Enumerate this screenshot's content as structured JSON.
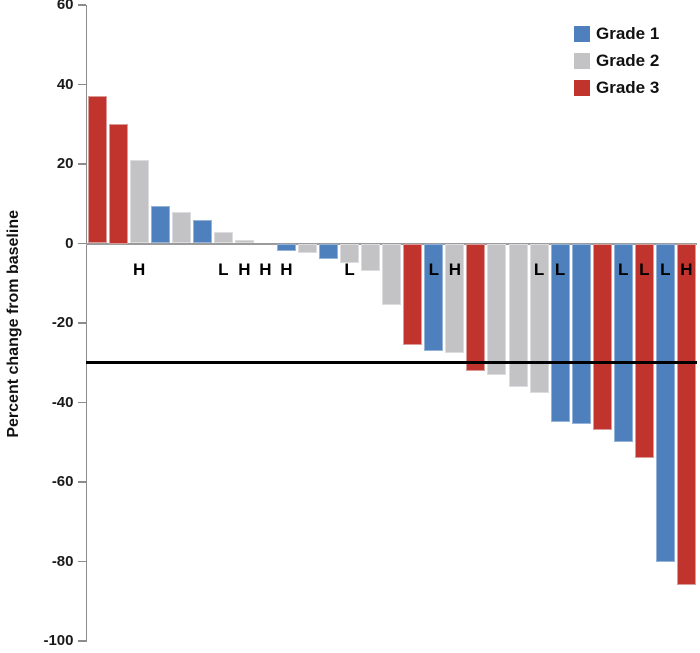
{
  "chart_data": {
    "type": "bar",
    "variant": "waterfall",
    "title": "",
    "xlabel": "",
    "ylabel": "Percent change from baseline",
    "ylim": [
      -100,
      60
    ],
    "yticks": [
      60,
      40,
      20,
      0,
      -20,
      -40,
      -60,
      -80,
      -100
    ],
    "grid": false,
    "legend_position": "top-right",
    "legend": [
      {
        "label": "Grade 1",
        "grade": 1,
        "color": "#4D80BC",
        "border": "#95B3D7"
      },
      {
        "label": "Grade 2",
        "grade": 2,
        "color": "#C3C3C5",
        "border": "#DCDCDE"
      },
      {
        "label": "Grade 3",
        "grade": 3,
        "color": "#C1342E",
        "border": "#D99A98"
      }
    ],
    "reference_line": {
      "value": -30,
      "color": "#000000"
    },
    "axis_color": "#8C8C8C",
    "marker_legend": [
      "H",
      "L"
    ],
    "bars": [
      {
        "value": 37,
        "grade": 3,
        "marker": ""
      },
      {
        "value": 30,
        "grade": 3,
        "marker": ""
      },
      {
        "value": 21,
        "grade": 2,
        "marker": "H"
      },
      {
        "value": 9.5,
        "grade": 1,
        "marker": ""
      },
      {
        "value": 8,
        "grade": 2,
        "marker": ""
      },
      {
        "value": 6,
        "grade": 1,
        "marker": ""
      },
      {
        "value": 3,
        "grade": 2,
        "marker": "L"
      },
      {
        "value": 1,
        "grade": 2,
        "marker": "H"
      },
      {
        "value": 0,
        "grade": 2,
        "marker": "H"
      },
      {
        "value": -2,
        "grade": 1,
        "marker": "H"
      },
      {
        "value": -2.5,
        "grade": 2,
        "marker": ""
      },
      {
        "value": -4,
        "grade": 1,
        "marker": ""
      },
      {
        "value": -5,
        "grade": 2,
        "marker": "L"
      },
      {
        "value": -7,
        "grade": 2,
        "marker": ""
      },
      {
        "value": -15.5,
        "grade": 2,
        "marker": ""
      },
      {
        "value": -25.5,
        "grade": 3,
        "marker": ""
      },
      {
        "value": -27,
        "grade": 1,
        "marker": "L"
      },
      {
        "value": -27.5,
        "grade": 2,
        "marker": "H"
      },
      {
        "value": -32,
        "grade": 3,
        "marker": ""
      },
      {
        "value": -33,
        "grade": 2,
        "marker": ""
      },
      {
        "value": -36,
        "grade": 2,
        "marker": ""
      },
      {
        "value": -37.5,
        "grade": 2,
        "marker": "L"
      },
      {
        "value": -45,
        "grade": 1,
        "marker": "L"
      },
      {
        "value": -45.5,
        "grade": 1,
        "marker": ""
      },
      {
        "value": -47,
        "grade": 3,
        "marker": ""
      },
      {
        "value": -50,
        "grade": 1,
        "marker": "L"
      },
      {
        "value": -54,
        "grade": 3,
        "marker": "L"
      },
      {
        "value": -80,
        "grade": 1,
        "marker": "L"
      },
      {
        "value": -86,
        "grade": 3,
        "marker": "H"
      }
    ]
  }
}
